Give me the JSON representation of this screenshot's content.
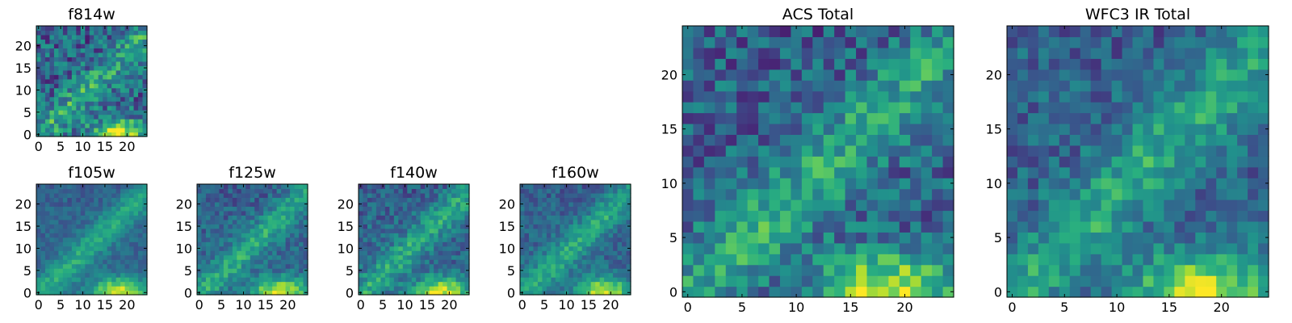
{
  "chart_data": [
    {
      "type": "heatmap",
      "title": "f814w",
      "colormap": "viridis",
      "seed": 11,
      "noise": 0.9,
      "x_ticks": [
        "0",
        "5",
        "10",
        "15",
        "20"
      ],
      "y_ticks": [
        "0",
        "5",
        "10",
        "15",
        "20"
      ],
      "xlim": [
        0,
        25
      ],
      "ylim": [
        0,
        25
      ]
    },
    {
      "type": "heatmap",
      "title": "f105w",
      "colormap": "viridis",
      "seed": 23,
      "noise": 0.35,
      "x_ticks": [
        "0",
        "5",
        "10",
        "15",
        "20"
      ],
      "y_ticks": [
        "0",
        "5",
        "10",
        "15",
        "20"
      ],
      "xlim": [
        0,
        25
      ],
      "ylim": [
        0,
        25
      ]
    },
    {
      "type": "heatmap",
      "title": "f125w",
      "colormap": "viridis",
      "seed": 37,
      "noise": 0.5,
      "x_ticks": [
        "0",
        "5",
        "10",
        "15",
        "20"
      ],
      "y_ticks": [
        "0",
        "5",
        "10",
        "15",
        "20"
      ],
      "xlim": [
        0,
        25
      ],
      "ylim": [
        0,
        25
      ]
    },
    {
      "type": "heatmap",
      "title": "f140w",
      "colormap": "viridis",
      "seed": 41,
      "noise": 0.55,
      "x_ticks": [
        "0",
        "5",
        "10",
        "15",
        "20"
      ],
      "y_ticks": [
        "0",
        "5",
        "10",
        "15",
        "20"
      ],
      "xlim": [
        0,
        25
      ],
      "ylim": [
        0,
        25
      ]
    },
    {
      "type": "heatmap",
      "title": "f160w",
      "colormap": "viridis",
      "seed": 53,
      "noise": 0.45,
      "x_ticks": [
        "0",
        "5",
        "10",
        "15",
        "20"
      ],
      "y_ticks": [
        "0",
        "5",
        "10",
        "15",
        "20"
      ],
      "xlim": [
        0,
        25
      ],
      "ylim": [
        0,
        25
      ]
    },
    {
      "type": "heatmap",
      "title": "ACS Total",
      "colormap": "viridis",
      "seed": 67,
      "noise": 0.75,
      "x_ticks": [
        "0",
        "5",
        "10",
        "15",
        "20"
      ],
      "y_ticks": [
        "0",
        "5",
        "10",
        "15",
        "20"
      ],
      "xlim": [
        0,
        25
      ],
      "ylim": [
        0,
        25
      ]
    },
    {
      "type": "heatmap",
      "title": "WFC3 IR Total",
      "colormap": "viridis",
      "seed": 79,
      "noise": 0.6,
      "x_ticks": [
        "0",
        "5",
        "10",
        "15",
        "20"
      ],
      "y_ticks": [
        "0",
        "5",
        "10",
        "15",
        "20"
      ],
      "xlim": [
        0,
        25
      ],
      "ylim": [
        0,
        25
      ]
    }
  ]
}
